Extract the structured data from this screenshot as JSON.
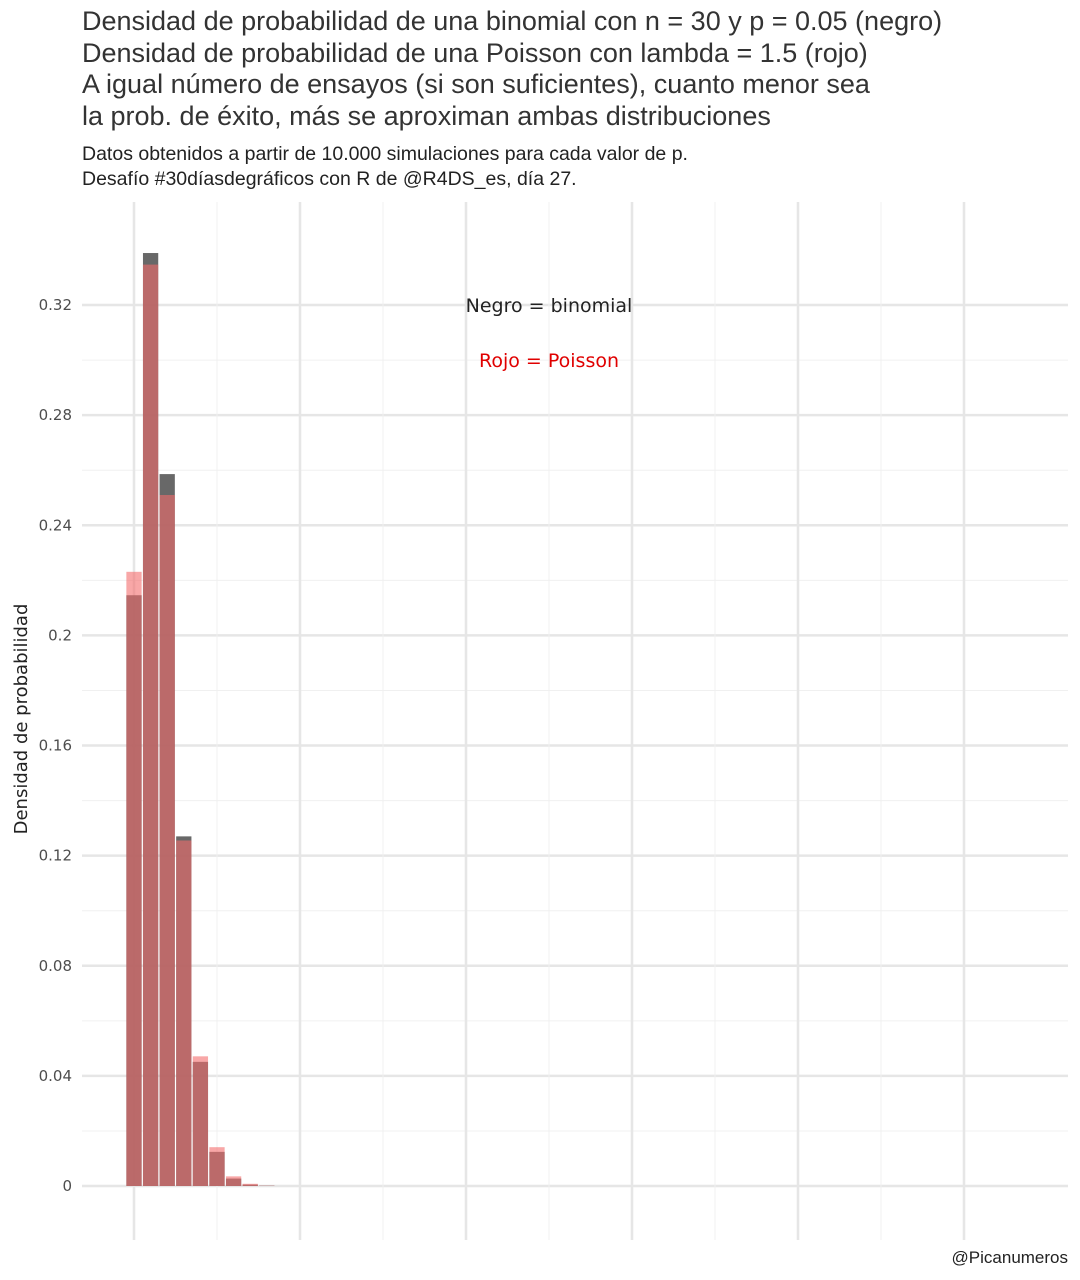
{
  "chart_data": {
    "type": "bar",
    "title": [
      "Densidad de probabilidad de una binomial con n = 30 y p = 0.05 (negro)",
      "Densidad de probabilidad de una Poisson con lambda = 1.5 (rojo)",
      "A igual número de ensayos (si son suficientes), cuanto menor sea",
      "la prob. de éxito, más se aproximan ambas distribuciones"
    ],
    "subtitle": [
      "Datos obtenidos a partir de 10.000 simulaciones para cada valor de p.",
      "Desafío #30díasdegráficos con R de @R4DS_es, día 27."
    ],
    "caption": "@Picanumeros",
    "ylabel": "Densidad de probabilidad",
    "xlabel": "",
    "ylim": [
      0,
      0.34
    ],
    "xlim": [
      -0.5,
      30.5
    ],
    "y_ticks": [
      "0",
      "0.04",
      "0.08",
      "0.12",
      "0.16",
      "0.2",
      "0.24",
      "0.28",
      "0.32"
    ],
    "y_tick_values": [
      0,
      0.04,
      0.08,
      0.12,
      0.16,
      0.2,
      0.24,
      0.28,
      0.32
    ],
    "x": [
      0,
      1,
      2,
      3,
      4,
      5,
      6,
      7,
      8
    ],
    "series": [
      {
        "color": "#4d4d4d",
        "values": [
          0.2146,
          0.3389,
          0.2586,
          0.127,
          0.0451,
          0.0124,
          0.0027,
          0.0005,
          0.0001
        ]
      },
      {
        "color": "#f46d6d",
        "values": [
          0.2231,
          0.3347,
          0.251,
          0.1255,
          0.0471,
          0.0141,
          0.0035,
          0.0008,
          0.0001
        ]
      }
    ],
    "annotations": [
      {
        "text": "Negro = binomial",
        "color": "#222222",
        "x": 15,
        "y": 0.32
      },
      {
        "text": "Rojo = Poisson",
        "color": "#e00000",
        "x": 15,
        "y": 0.3
      }
    ],
    "grid": true,
    "legend": "none"
  }
}
